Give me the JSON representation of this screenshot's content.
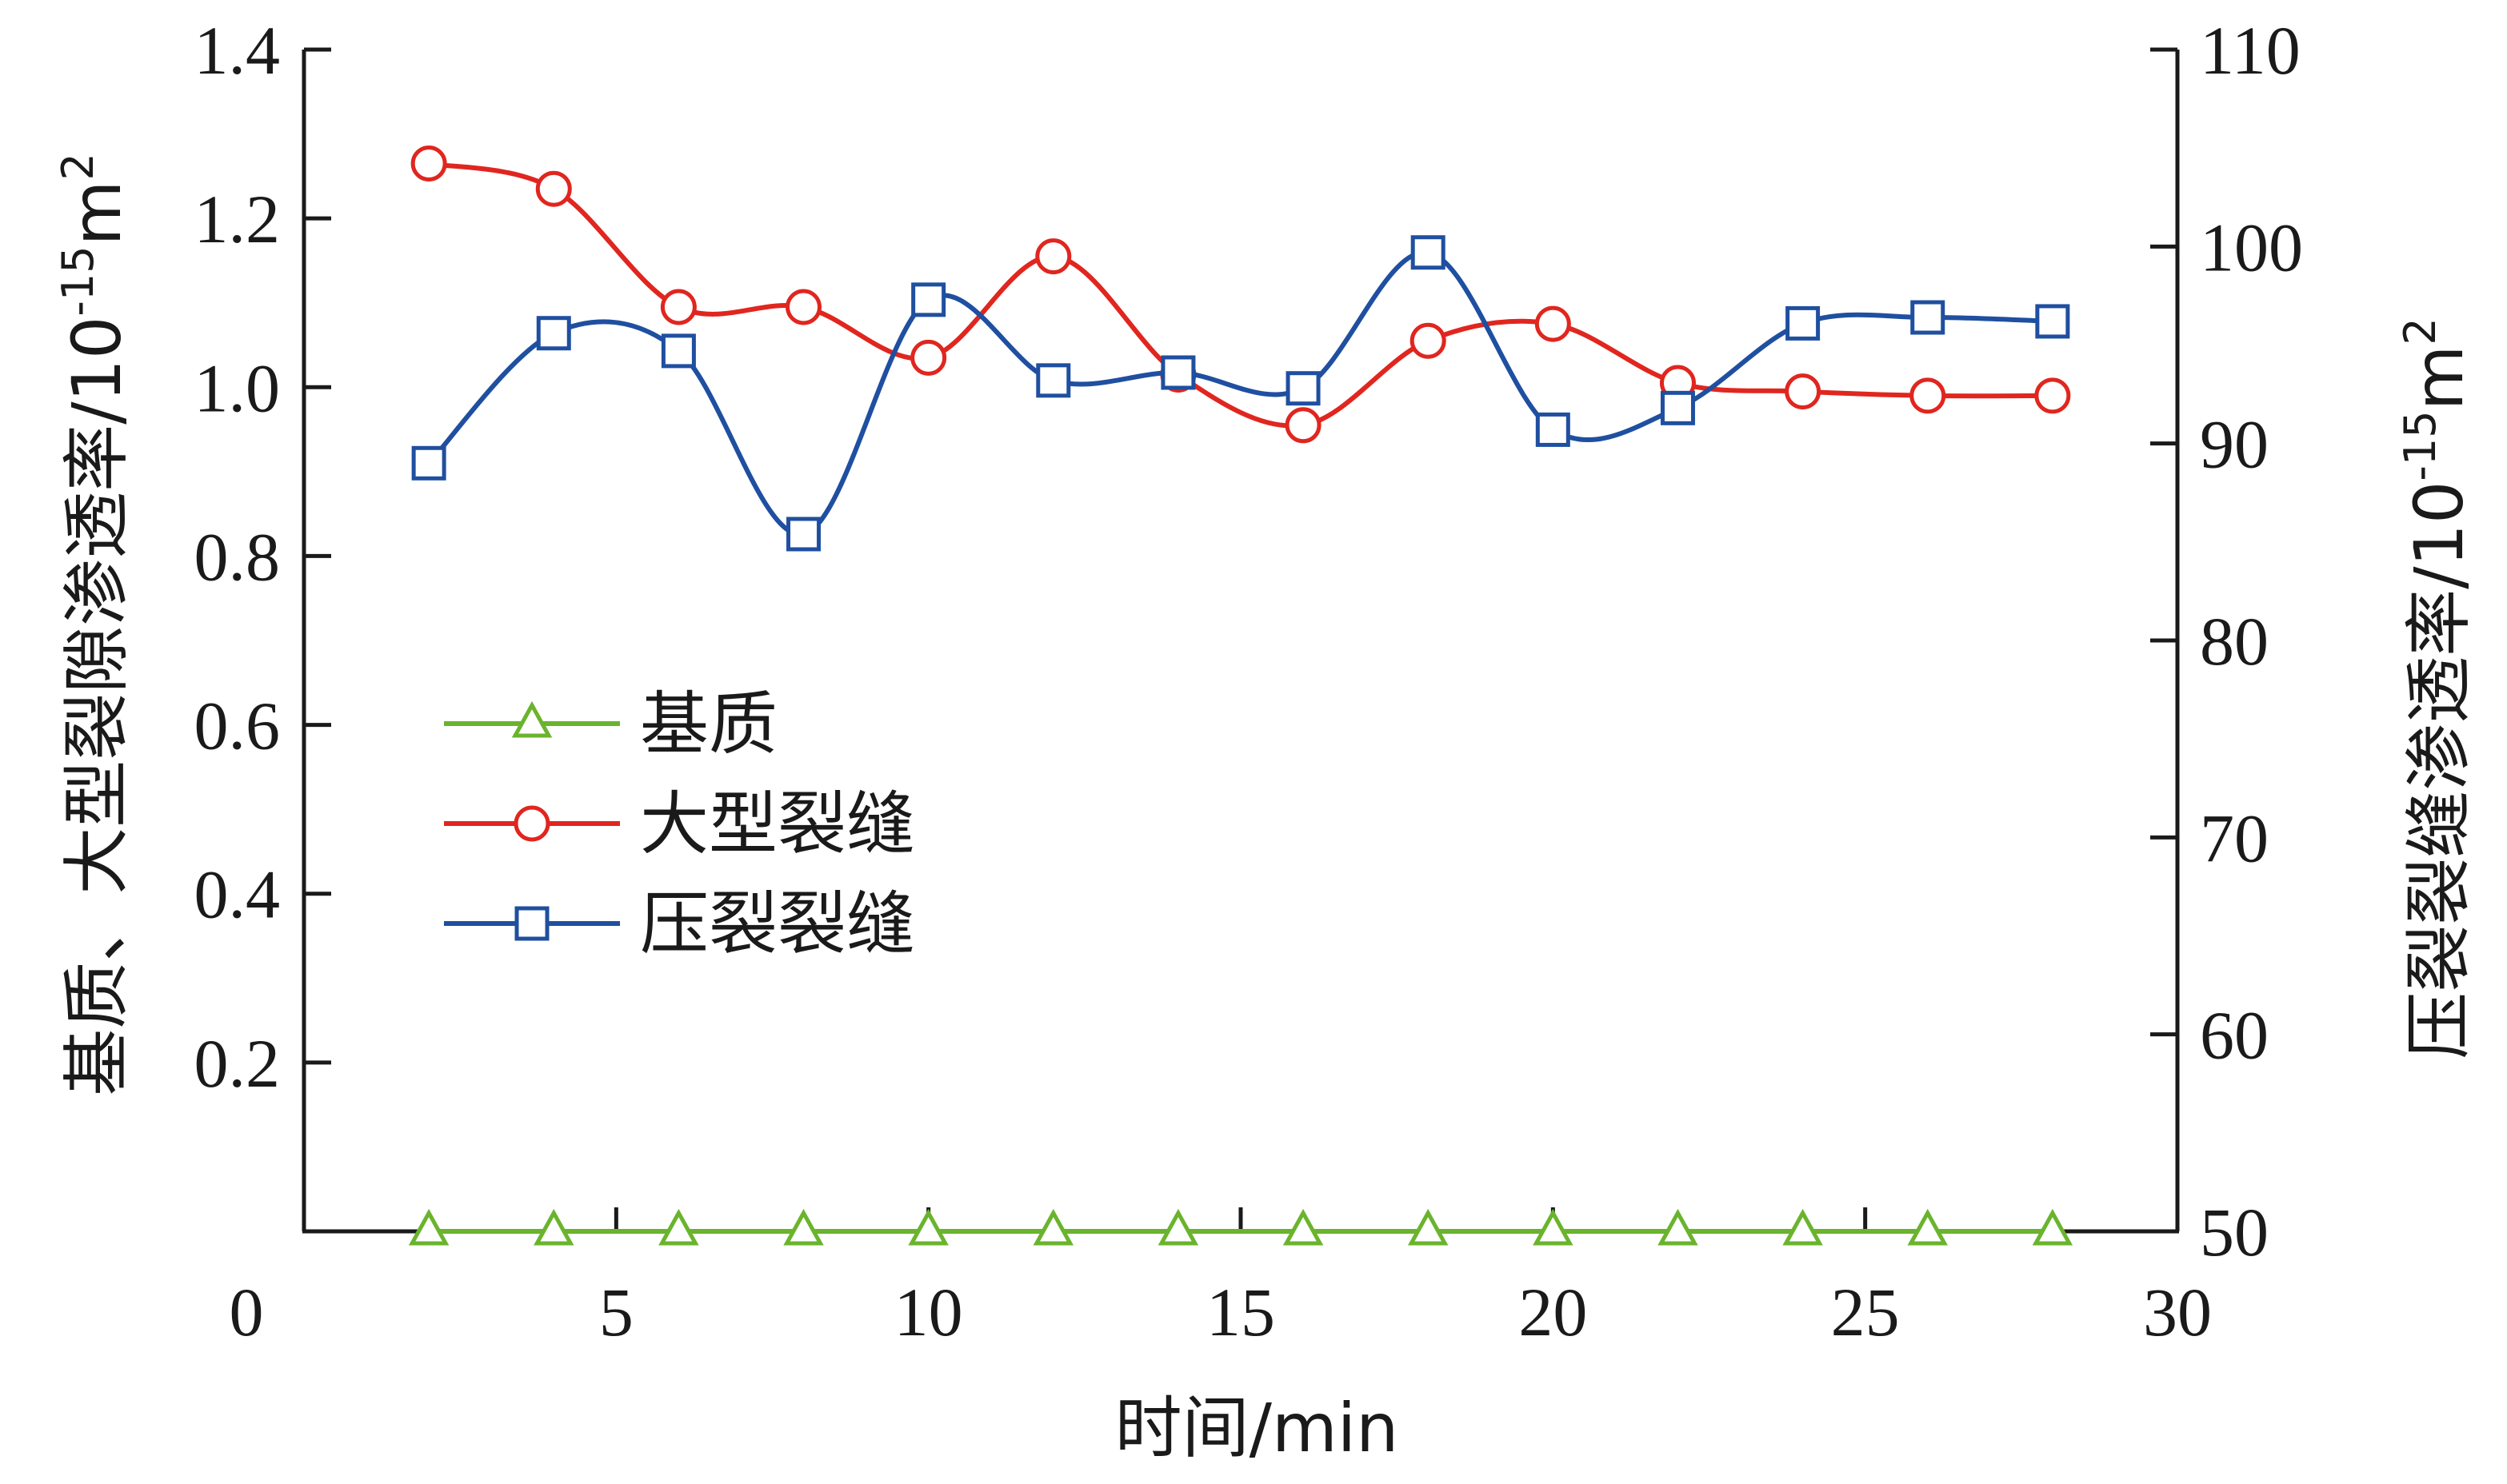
{
  "chart_data": {
    "type": "line",
    "x_axis": {
      "label": "时间/min",
      "range": [
        0,
        30
      ],
      "ticks": [
        0,
        5,
        10,
        15,
        20,
        25,
        30
      ]
    },
    "y_left_axis": {
      "label": "基质、大型裂隙渗透率/10",
      "unit_exponent": "-15",
      "unit_tail": "m",
      "unit_power": "2",
      "range": [
        0,
        1.4
      ],
      "ticks": [
        0.2,
        0.4,
        0.6,
        0.8,
        1.0,
        1.2,
        1.4
      ],
      "tick_labels": [
        "0.2",
        "0.4",
        "0.6",
        "0.8",
        "1.0",
        "1.2",
        "1.4"
      ]
    },
    "y_right_axis": {
      "label": "压裂裂缝渗透率/10",
      "unit_exponent": "-15",
      "unit_tail": "m",
      "unit_power": "2",
      "range": [
        50,
        110
      ],
      "ticks": [
        50,
        60,
        70,
        80,
        90,
        100,
        110
      ]
    },
    "x": [
      2,
      4,
      6,
      8,
      10,
      12,
      14,
      16,
      18,
      20,
      22,
      24,
      26,
      28
    ],
    "series": [
      {
        "name": "基质",
        "axis": "left",
        "color": "#6ab42d",
        "marker": "triangle",
        "values": [
          0,
          0,
          0,
          0,
          0,
          0,
          0,
          0,
          0,
          0,
          0,
          0,
          0,
          0
        ]
      },
      {
        "name": "大型裂缝",
        "axis": "left",
        "color": "#e0261f",
        "marker": "circle",
        "values": [
          1.265,
          1.235,
          1.095,
          1.095,
          1.035,
          1.155,
          1.015,
          0.955,
          1.055,
          1.075,
          1.005,
          0.995,
          0.99,
          0.99
        ]
      },
      {
        "name": "压裂裂缝",
        "axis": "right",
        "color": "#1f4fa0",
        "marker": "square",
        "values": [
          89.0,
          95.6,
          94.7,
          85.4,
          97.3,
          93.2,
          93.6,
          92.8,
          99.7,
          90.7,
          91.8,
          96.1,
          96.4,
          96.2
        ]
      }
    ],
    "legend_position": "center-left",
    "grid": false
  }
}
